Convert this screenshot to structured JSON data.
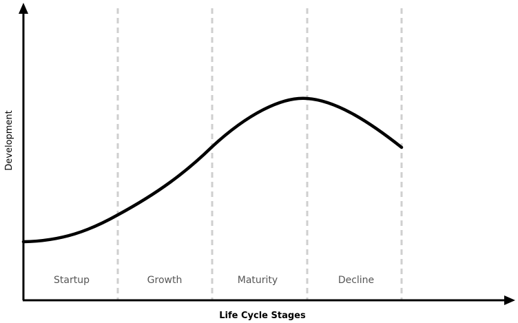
{
  "y_axis_label": "Development",
  "x_axis_label": "Life Cycle Stages",
  "stages": [
    "Startup",
    "Growth",
    "Maturity",
    "Decline"
  ]
}
